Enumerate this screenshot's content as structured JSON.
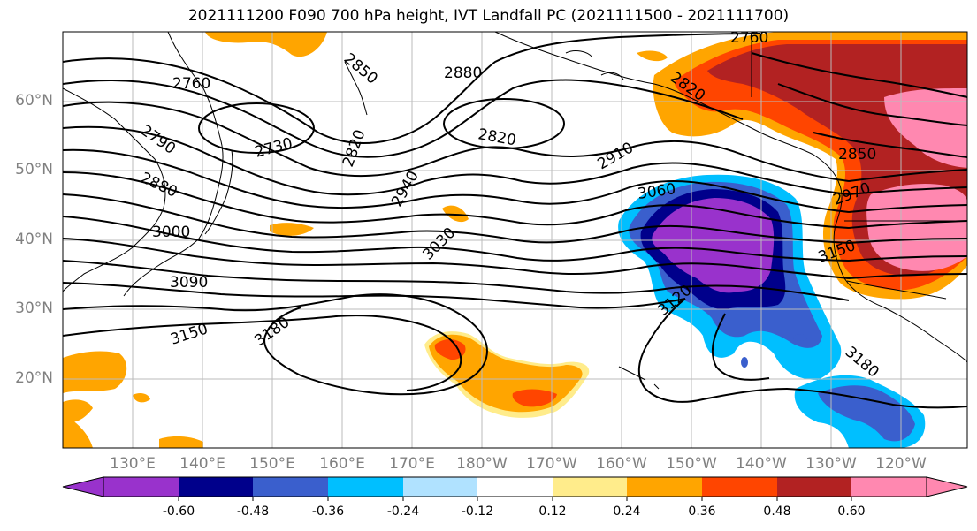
{
  "title": "2021111200 F090 700 hPa height, IVT Landfall PC (2021111500 - 2021111700)",
  "lat_labels": [
    "60°N",
    "50°N",
    "40°N",
    "30°N",
    "20°N"
  ],
  "lon_labels": [
    "130°E",
    "140°E",
    "150°E",
    "160°E",
    "170°E",
    "180°W",
    "170°W",
    "160°W",
    "150°W",
    "140°W",
    "130°W",
    "120°W"
  ],
  "contour_labels": [
    "2760",
    "2790",
    "2880",
    "3000",
    "3090",
    "3150",
    "3180",
    "2730",
    "2820",
    "2850",
    "2880",
    "2820",
    "2940",
    "3030",
    "2910",
    "3060",
    "3120",
    "3180",
    "2820",
    "2760",
    "2850",
    "2970",
    "3150"
  ],
  "colorbar": {
    "colors": [
      "#9932cc",
      "#00008b",
      "#3a5fcd",
      "#00bfff",
      "#b0e2ff",
      "#ffffff",
      "#ffec8b",
      "#ffa500",
      "#ff4500",
      "#b22222",
      "#ff88b0"
    ],
    "tick_labels": [
      "-0.60",
      "-0.48",
      "-0.36",
      "-0.24",
      "-0.12",
      "0.12",
      "0.24",
      "0.36",
      "0.48",
      "0.60"
    ]
  }
}
